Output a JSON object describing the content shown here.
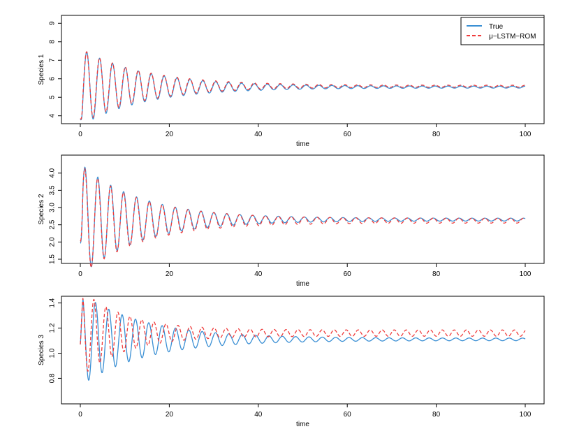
{
  "legend": {
    "entries": [
      {
        "label": "True",
        "color": "#3a8fd4",
        "style": "solid"
      },
      {
        "label": "μ−LSTM−ROM",
        "color": "#ef3b3b",
        "style": "dashed"
      }
    ]
  },
  "chart_data": [
    {
      "type": "line",
      "xlabel": "time",
      "ylabel": "Species 1",
      "xlim": [
        0,
        100
      ],
      "ylim": [
        3.8,
        9.2
      ],
      "xticks": [
        0,
        20,
        40,
        60,
        80,
        100
      ],
      "yticks": [
        4,
        5,
        6,
        7,
        8,
        9
      ],
      "grid": false,
      "legend_position": "top-right",
      "series": [
        {
          "name": "True",
          "color": "#3a8fd4",
          "dash": "solid",
          "model": {
            "t_start": 0,
            "t_end": 100,
            "y0": 3.85,
            "baseline": 5.55,
            "amplitude": 2.05,
            "decay": 0.07,
            "period": 2.9,
            "steady_amplitude": 0.05,
            "phase": 0
          }
        },
        {
          "name": "μ−LSTM−ROM",
          "color": "#ef3b3b",
          "dash": "dashed",
          "model": {
            "t_start": 0,
            "t_end": 100,
            "y0": 3.85,
            "baseline": 5.6,
            "amplitude": 2.0,
            "decay": 0.07,
            "period": 2.9,
            "steady_amplitude": 0.05,
            "phase": 0.05
          }
        }
      ]
    },
    {
      "type": "line",
      "xlabel": "time",
      "ylabel": "Species 2",
      "xlim": [
        0,
        100
      ],
      "ylim": [
        1.5,
        4.4
      ],
      "xticks": [
        0,
        20,
        40,
        60,
        80,
        100
      ],
      "yticks": [
        1.5,
        2.0,
        2.5,
        3.0,
        3.5,
        4.0
      ],
      "grid": false,
      "legend_position": "none",
      "series": [
        {
          "name": "True",
          "color": "#3a8fd4",
          "dash": "solid",
          "model": {
            "t_start": 0,
            "t_end": 100,
            "y0": 2.0,
            "baseline": 2.65,
            "amplitude": 1.6,
            "decay": 0.075,
            "period": 2.9,
            "steady_amplitude": 0.04,
            "phase": 0.9
          }
        },
        {
          "name": "μ−LSTM−ROM",
          "color": "#ef3b3b",
          "dash": "dashed",
          "model": {
            "t_start": 0,
            "t_end": 100,
            "y0": 2.05,
            "baseline": 2.62,
            "amplitude": 1.55,
            "decay": 0.075,
            "period": 2.9,
            "steady_amplitude": 0.07,
            "phase": 0.95
          }
        }
      ]
    },
    {
      "type": "line",
      "xlabel": "time",
      "ylabel": "Species 3",
      "xlim": [
        0,
        100
      ],
      "ylim": [
        0.63,
        1.42
      ],
      "xticks": [
        0,
        20,
        40,
        60,
        80,
        100
      ],
      "yticks": [
        0.8,
        1.0,
        1.2,
        1.4
      ],
      "grid": false,
      "legend_position": "none",
      "series": [
        {
          "name": "True",
          "color": "#3a8fd4",
          "dash": "solid",
          "model": {
            "t_start": 0,
            "t_end": 100,
            "y0": 1.07,
            "baseline": 1.11,
            "amplitude": 0.36,
            "decay": 0.07,
            "period": 3.0,
            "steady_amplitude": 0.01,
            "phase": 2.3
          }
        },
        {
          "name": "μ−LSTM−ROM",
          "color": "#ef3b3b",
          "dash": "dashed",
          "model": {
            "t_start": 0,
            "t_end": 100,
            "y0": 1.07,
            "baseline": 1.16,
            "amplitude": 0.33,
            "decay": 0.1,
            "period": 2.7,
            "steady_amplitude": 0.025,
            "phase": 2.3
          }
        }
      ]
    }
  ]
}
